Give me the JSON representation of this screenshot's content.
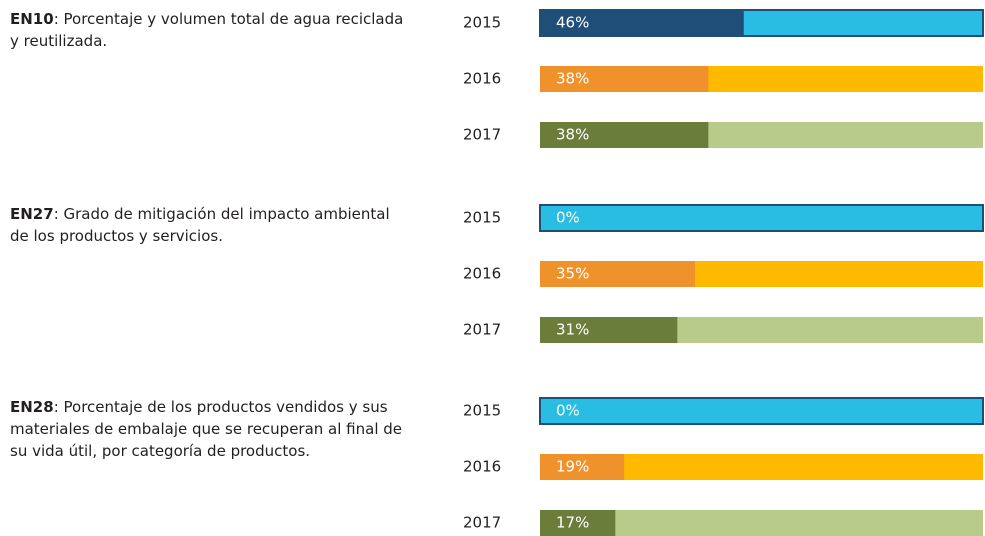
{
  "chart_data": [
    {
      "type": "progress",
      "code": "EN10",
      "title": ": Porcentaje y volumen total de agua reciclada y reutilizada.",
      "categories": [
        "2015",
        "2016",
        "2017"
      ],
      "values": [
        46,
        38,
        38
      ],
      "value_labels": [
        "46%",
        "38%",
        "38%"
      ],
      "colors": [
        "#1f4e79",
        "#f0922b",
        "#6b7d3a"
      ],
      "track_colors": [
        "#29bde3",
        "#ffba00",
        "#b8cb8a"
      ],
      "xlim": [
        0,
        100
      ]
    },
    {
      "type": "progress",
      "code": "EN27",
      "title": ": Grado de mitigación del impacto ambiental de los productos y servicios.",
      "categories": [
        "2015",
        "2016",
        "2017"
      ],
      "values": [
        0,
        35,
        31
      ],
      "value_labels": [
        "0%",
        "35%",
        "31%"
      ],
      "colors": [
        "#1f4e79",
        "#f0922b",
        "#6b7d3a"
      ],
      "track_colors": [
        "#29bde3",
        "#ffba00",
        "#b8cb8a"
      ],
      "xlim": [
        0,
        100
      ]
    },
    {
      "type": "progress",
      "code": "EN28",
      "title": ": Porcentaje de los productos vendidos y sus materiales de embalaje que se recuperan al final de su vida útil, por categoría de productos.",
      "categories": [
        "2015",
        "2016",
        "2017"
      ],
      "values": [
        0,
        19,
        17
      ],
      "value_labels": [
        "0%",
        "19%",
        "17%"
      ],
      "colors": [
        "#1f4e79",
        "#f0922b",
        "#6b7d3a"
      ],
      "track_colors": [
        "#29bde3",
        "#ffba00",
        "#b8cb8a"
      ],
      "xlim": [
        0,
        100
      ]
    }
  ]
}
